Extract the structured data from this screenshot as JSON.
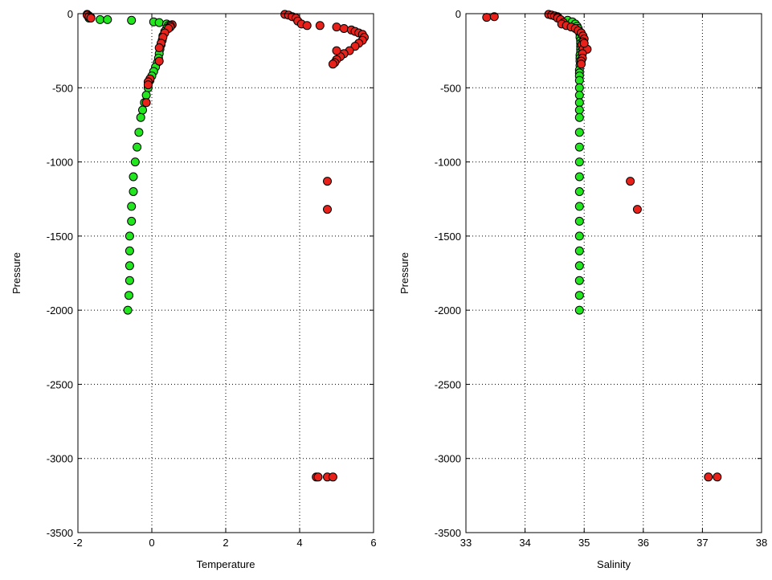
{
  "colors": {
    "red": "#e8221b",
    "green": "#22e61e",
    "edge": "#000000",
    "grid": "#000000"
  },
  "chart_data": [
    {
      "type": "scatter",
      "title": "",
      "xlabel": "Temperature",
      "ylabel": "Pressure",
      "xlim": [
        -2,
        6
      ],
      "ylim": [
        -3500,
        0
      ],
      "xticks": [
        "-2",
        "0",
        "2",
        "4",
        "6"
      ],
      "yticks": [
        "0",
        "-500",
        "-1000",
        "-1500",
        "-2000",
        "-2500",
        "-3000",
        "-3500"
      ],
      "grid": true,
      "series": [
        {
          "color": "green",
          "points": [
            [
              -1.75,
              -5
            ],
            [
              -1.7,
              -15
            ],
            [
              -1.65,
              -25
            ],
            [
              -1.7,
              -30
            ],
            [
              -1.4,
              -40
            ],
            [
              -1.2,
              -40
            ],
            [
              -0.55,
              -45
            ],
            [
              0.05,
              -55
            ],
            [
              0.2,
              -60
            ],
            [
              0.4,
              -70
            ],
            [
              0.45,
              -80
            ],
            [
              0.4,
              -100
            ],
            [
              0.35,
              -120
            ],
            [
              0.3,
              -150
            ],
            [
              0.28,
              -180
            ],
            [
              0.25,
              -210
            ],
            [
              0.22,
              -240
            ],
            [
              0.2,
              -270
            ],
            [
              0.18,
              -300
            ],
            [
              0.15,
              -330
            ],
            [
              0.1,
              -360
            ],
            [
              0.05,
              -390
            ],
            [
              0.0,
              -420
            ],
            [
              -0.05,
              -450
            ],
            [
              -0.1,
              -500
            ],
            [
              -0.15,
              -550
            ],
            [
              -0.2,
              -600
            ],
            [
              -0.25,
              -650
            ],
            [
              -0.3,
              -700
            ],
            [
              -0.35,
              -800
            ],
            [
              -0.4,
              -900
            ],
            [
              -0.45,
              -1000
            ],
            [
              -0.5,
              -1100
            ],
            [
              -0.5,
              -1200
            ],
            [
              -0.55,
              -1300
            ],
            [
              -0.55,
              -1400
            ],
            [
              -0.6,
              -1500
            ],
            [
              -0.6,
              -1600
            ],
            [
              -0.6,
              -1700
            ],
            [
              -0.6,
              -1800
            ],
            [
              -0.62,
              -1900
            ],
            [
              -0.65,
              -2000
            ]
          ]
        },
        {
          "color": "red",
          "points": [
            [
              -1.75,
              -10
            ],
            [
              -1.7,
              -20
            ],
            [
              -1.65,
              -30
            ],
            [
              0.55,
              -75
            ],
            [
              0.5,
              -80
            ],
            [
              0.5,
              -90
            ],
            [
              0.45,
              -100
            ],
            [
              0.35,
              -130
            ],
            [
              0.3,
              -160
            ],
            [
              0.25,
              -200
            ],
            [
              0.2,
              -230
            ],
            [
              0.2,
              -320
            ],
            [
              -0.05,
              -440
            ],
            [
              -0.1,
              -460
            ],
            [
              -0.1,
              -480
            ],
            [
              -0.15,
              -600
            ],
            [
              3.6,
              -5
            ],
            [
              3.7,
              -10
            ],
            [
              3.8,
              -20
            ],
            [
              3.9,
              -30
            ],
            [
              3.95,
              -50
            ],
            [
              4.05,
              -70
            ],
            [
              4.2,
              -80
            ],
            [
              4.55,
              -80
            ],
            [
              5.0,
              -90
            ],
            [
              5.2,
              -100
            ],
            [
              5.4,
              -110
            ],
            [
              5.5,
              -120
            ],
            [
              5.6,
              -130
            ],
            [
              5.7,
              -140
            ],
            [
              5.75,
              -160
            ],
            [
              5.7,
              -180
            ],
            [
              5.6,
              -200
            ],
            [
              5.5,
              -220
            ],
            [
              5.35,
              -250
            ],
            [
              5.2,
              -270
            ],
            [
              5.1,
              -290
            ],
            [
              5.0,
              -310
            ],
            [
              4.95,
              -330
            ],
            [
              4.9,
              -340
            ],
            [
              5.0,
              -250
            ],
            [
              4.75,
              -1130
            ],
            [
              4.75,
              -1320
            ],
            [
              4.45,
              -3125
            ],
            [
              4.5,
              -3125
            ],
            [
              4.75,
              -3125
            ],
            [
              4.9,
              -3125
            ]
          ]
        }
      ]
    },
    {
      "type": "scatter",
      "title": "",
      "xlabel": "Salinity",
      "ylabel": "Pressure",
      "xlim": [
        33,
        38
      ],
      "ylim": [
        -3500,
        0
      ],
      "xticks": [
        "33",
        "34",
        "35",
        "36",
        "37",
        "38"
      ],
      "yticks": [
        "0",
        "-500",
        "-1000",
        "-1500",
        "-2000",
        "-2500",
        "-3000",
        "-3500"
      ],
      "grid": true,
      "series": [
        {
          "color": "green",
          "points": [
            [
              34.72,
              -45
            ],
            [
              34.8,
              -55
            ],
            [
              34.85,
              -70
            ],
            [
              34.88,
              -85
            ],
            [
              34.9,
              -100
            ],
            [
              34.92,
              -120
            ],
            [
              34.93,
              -140
            ],
            [
              34.93,
              -160
            ],
            [
              34.94,
              -180
            ],
            [
              34.94,
              -200
            ],
            [
              34.94,
              -220
            ],
            [
              34.94,
              -240
            ],
            [
              34.94,
              -260
            ],
            [
              34.93,
              -280
            ],
            [
              34.93,
              -300
            ],
            [
              34.93,
              -320
            ],
            [
              34.93,
              -350
            ],
            [
              34.92,
              -380
            ],
            [
              34.92,
              -400
            ],
            [
              34.92,
              -420
            ],
            [
              34.92,
              -450
            ],
            [
              34.92,
              -500
            ],
            [
              34.92,
              -550
            ],
            [
              34.92,
              -600
            ],
            [
              34.92,
              -650
            ],
            [
              34.92,
              -700
            ],
            [
              34.92,
              -800
            ],
            [
              34.92,
              -900
            ],
            [
              34.92,
              -1000
            ],
            [
              34.92,
              -1100
            ],
            [
              34.92,
              -1200
            ],
            [
              34.92,
              -1300
            ],
            [
              34.92,
              -1400
            ],
            [
              34.92,
              -1500
            ],
            [
              34.92,
              -1600
            ],
            [
              34.92,
              -1700
            ],
            [
              34.92,
              -1800
            ],
            [
              34.92,
              -1900
            ],
            [
              34.92,
              -2000
            ]
          ]
        },
        {
          "color": "red",
          "points": [
            [
              33.35,
              -25
            ],
            [
              33.48,
              -20
            ],
            [
              34.4,
              -5
            ],
            [
              34.45,
              -10
            ],
            [
              34.5,
              -15
            ],
            [
              34.55,
              -20
            ],
            [
              34.55,
              -30
            ],
            [
              34.6,
              -40
            ],
            [
              34.65,
              -60
            ],
            [
              34.62,
              -70
            ],
            [
              34.7,
              -80
            ],
            [
              34.78,
              -90
            ],
            [
              34.85,
              -100
            ],
            [
              34.9,
              -115
            ],
            [
              34.95,
              -130
            ],
            [
              34.98,
              -150
            ],
            [
              35.0,
              -170
            ],
            [
              34.98,
              -190
            ],
            [
              34.96,
              -210
            ],
            [
              34.98,
              -240
            ],
            [
              35.05,
              -240
            ],
            [
              34.97,
              -270
            ],
            [
              34.97,
              -300
            ],
            [
              34.95,
              -320
            ],
            [
              34.95,
              -340
            ],
            [
              35.0,
              -200
            ],
            [
              35.78,
              -1130
            ],
            [
              35.9,
              -1320
            ],
            [
              37.1,
              -3125
            ],
            [
              37.25,
              -3125
            ]
          ]
        }
      ]
    }
  ]
}
